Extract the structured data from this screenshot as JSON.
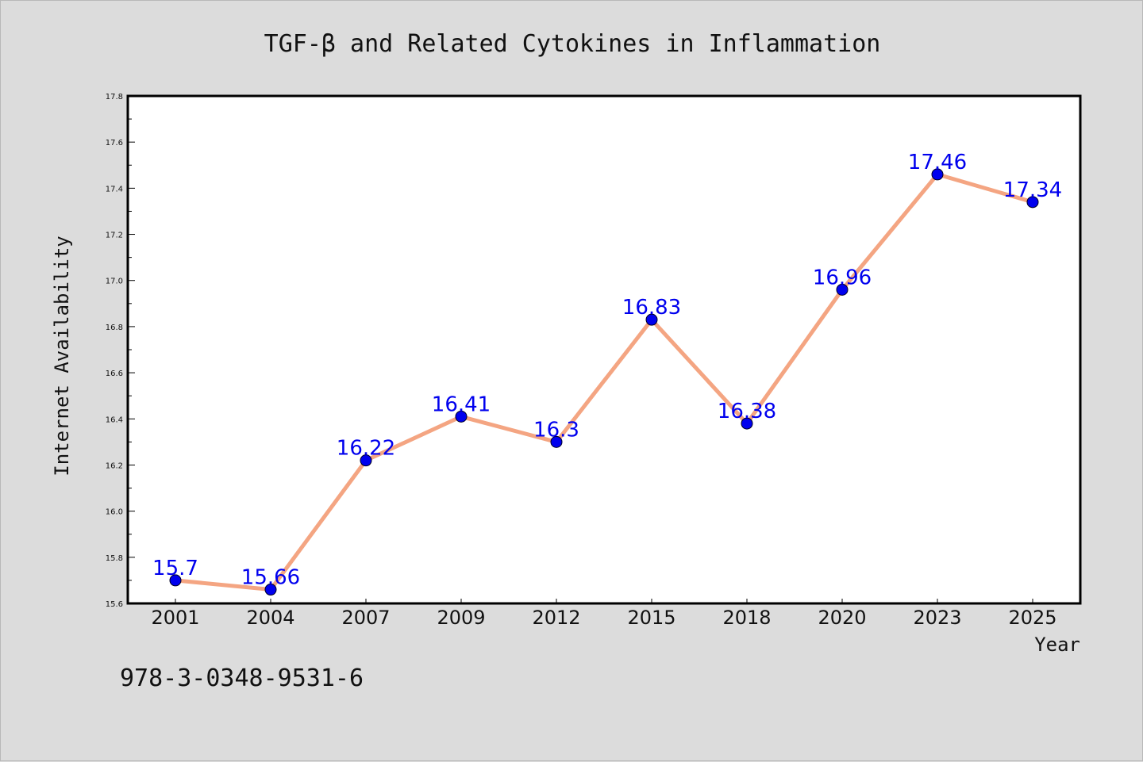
{
  "chart_data": {
    "type": "line",
    "title": "TGF-β and Related Cytokines in Inflammation",
    "xlabel": "Year",
    "ylabel": "Internet Availability",
    "categories": [
      "2001",
      "2004",
      "2007",
      "2009",
      "2012",
      "2015",
      "2018",
      "2020",
      "2023",
      "2025"
    ],
    "series": [
      {
        "values": [
          15.7,
          15.66,
          16.22,
          16.41,
          16.3,
          16.83,
          16.38,
          16.96,
          17.46,
          17.34
        ]
      }
    ],
    "data_labels": [
      "15.7",
      "15.66",
      "16.22",
      "16.41",
      "16.3",
      "16.83",
      "16.38",
      "16.96",
      "17.46",
      "17.34"
    ],
    "ylim": [
      15.6,
      17.8
    ],
    "yticks": [
      "15.6",
      "15.8",
      "16.0",
      "16.2",
      "16.4",
      "16.6",
      "16.8",
      "17.0",
      "17.2",
      "17.4",
      "17.6",
      "17.8"
    ],
    "grid": false,
    "legend": "none",
    "colors": {
      "line": "#f4a582",
      "marker": "#0000ee",
      "label": "#0000ee",
      "background": "#dcdcdc",
      "plot_bg": "#ffffff"
    }
  },
  "footnote": "978-3-0348-9531-6"
}
